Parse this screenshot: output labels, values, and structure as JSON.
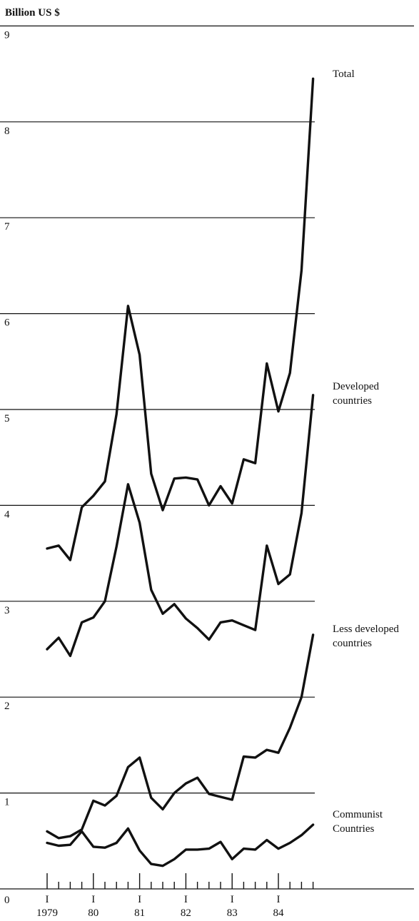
{
  "chart_data": {
    "type": "line",
    "ylabel": "Billion US $",
    "ylim": [
      0,
      9
    ],
    "y_ticks": [
      "0",
      "1",
      "2",
      "3",
      "4",
      "5",
      "6",
      "7",
      "8",
      "9"
    ],
    "x_period": "quarterly",
    "x_start": "1979 Q1",
    "x_ticks": [
      {
        "mark": "I",
        "year": "1979"
      },
      {
        "mark": "I",
        "year": "80"
      },
      {
        "mark": "I",
        "year": "81"
      },
      {
        "mark": "I",
        "year": "82"
      },
      {
        "mark": "I",
        "year": "83"
      },
      {
        "mark": "I",
        "year": "84"
      }
    ],
    "grid": true,
    "series": [
      {
        "name": "Total",
        "label_lines": [
          "Total"
        ],
        "values": [
          3.55,
          3.58,
          3.43,
          3.98,
          4.1,
          4.25,
          4.95,
          6.08,
          5.57,
          4.33,
          3.95,
          4.28,
          4.29,
          4.27,
          4.0,
          4.2,
          4.02,
          4.48,
          4.44,
          5.48,
          4.98,
          5.38,
          6.45,
          8.45
        ]
      },
      {
        "name": "Developed countries",
        "label_lines": [
          "Developed",
          "countries"
        ],
        "values": [
          2.5,
          2.62,
          2.43,
          2.78,
          2.83,
          3.0,
          3.57,
          4.22,
          3.82,
          3.12,
          2.87,
          2.97,
          2.82,
          2.72,
          2.6,
          2.78,
          2.8,
          2.75,
          2.7,
          3.58,
          3.18,
          3.28,
          3.92,
          5.15
        ]
      },
      {
        "name": "Less developed countries",
        "label_lines": [
          "Less developed",
          "countries"
        ],
        "values": [
          0.6,
          0.53,
          0.55,
          0.62,
          0.92,
          0.87,
          0.97,
          1.27,
          1.37,
          0.95,
          0.83,
          1.0,
          1.1,
          1.16,
          0.99,
          0.96,
          0.93,
          1.38,
          1.37,
          1.45,
          1.42,
          1.68,
          2.0,
          2.65
        ]
      },
      {
        "name": "Communist Countries",
        "label_lines": [
          "Communist",
          "Countries"
        ],
        "values": [
          0.48,
          0.45,
          0.46,
          0.6,
          0.44,
          0.43,
          0.48,
          0.63,
          0.4,
          0.26,
          0.24,
          0.31,
          0.41,
          0.41,
          0.42,
          0.49,
          0.31,
          0.42,
          0.41,
          0.51,
          0.42,
          0.48,
          0.56,
          0.67
        ]
      }
    ]
  }
}
